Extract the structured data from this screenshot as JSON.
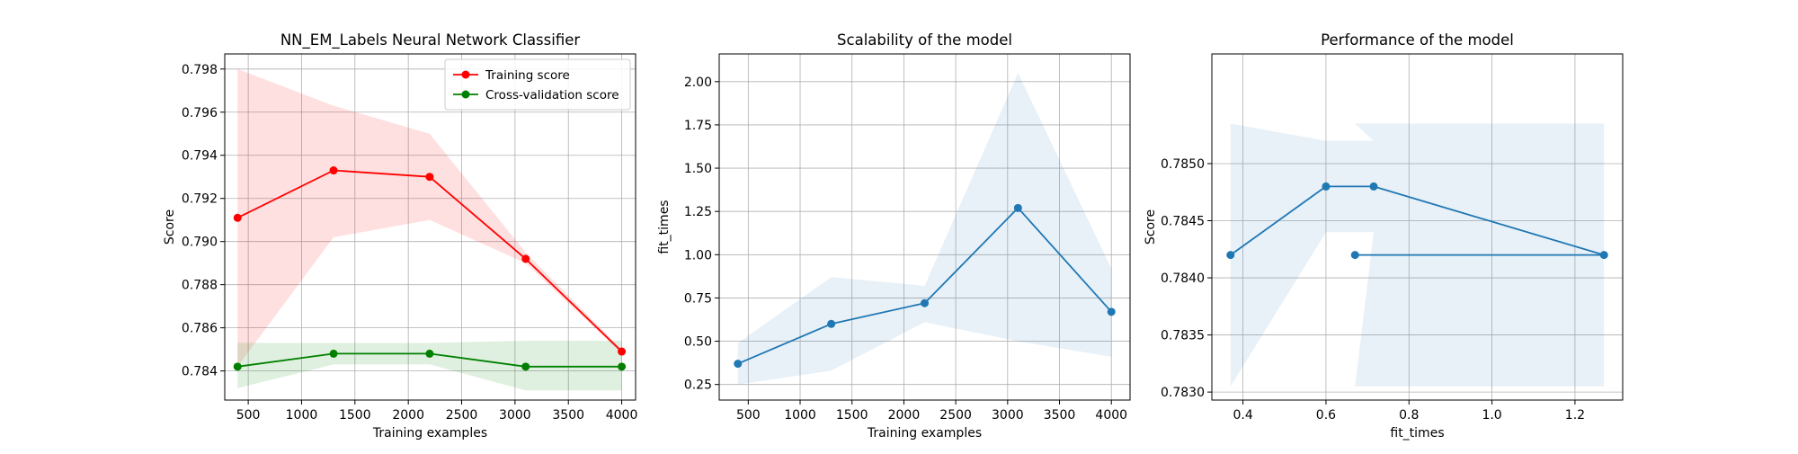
{
  "figure": {
    "background": "#ffffff"
  },
  "chart_data": [
    {
      "type": "line",
      "title": "NN_EM_Labels Neural Network Classifier",
      "xlabel": "Training examples",
      "ylabel": "Score",
      "xlim": [
        280,
        4130
      ],
      "ylim": [
        0.78265,
        0.7987
      ],
      "xticks": [
        {
          "value": 500,
          "label": "500"
        },
        {
          "value": 1000,
          "label": "1000"
        },
        {
          "value": 1500,
          "label": "1500"
        },
        {
          "value": 2000,
          "label": "2000"
        },
        {
          "value": 2500,
          "label": "2500"
        },
        {
          "value": 3000,
          "label": "3000"
        },
        {
          "value": 3500,
          "label": "3500"
        },
        {
          "value": 4000,
          "label": "4000"
        }
      ],
      "yticks": [
        {
          "value": 0.784,
          "label": "0.784"
        },
        {
          "value": 0.786,
          "label": "0.786"
        },
        {
          "value": 0.788,
          "label": "0.788"
        },
        {
          "value": 0.79,
          "label": "0.790"
        },
        {
          "value": 0.792,
          "label": "0.792"
        },
        {
          "value": 0.794,
          "label": "0.794"
        },
        {
          "value": 0.796,
          "label": "0.796"
        },
        {
          "value": 0.798,
          "label": "0.798"
        }
      ],
      "grid": true,
      "legend": {
        "position": "upper-right"
      },
      "bands": [
        {
          "x": [
            400,
            1300,
            2200,
            3100,
            4000
          ],
          "lower": [
            0.7842,
            0.7902,
            0.791,
            0.789,
            0.7848
          ],
          "upper": [
            0.798,
            0.7963,
            0.795,
            0.7895,
            0.785
          ],
          "color": "#ff0000",
          "opacity": 0.12
        },
        {
          "x": [
            400,
            1300,
            2200,
            3100,
            4000
          ],
          "lower": [
            0.7832,
            0.7843,
            0.7843,
            0.7831,
            0.7831
          ],
          "upper": [
            0.7853,
            0.7853,
            0.7853,
            0.7854,
            0.7854
          ],
          "color": "#008000",
          "opacity": 0.12
        }
      ],
      "series": [
        {
          "name": "Training score",
          "color": "#ff0000",
          "x": [
            400,
            1300,
            2200,
            3100,
            4000
          ],
          "y": [
            0.7911,
            0.7933,
            0.793,
            0.7892,
            0.7849
          ]
        },
        {
          "name": "Cross-validation score",
          "color": "#008000",
          "x": [
            400,
            1300,
            2200,
            3100,
            4000
          ],
          "y": [
            0.7842,
            0.7848,
            0.7848,
            0.7842,
            0.7842
          ]
        }
      ]
    },
    {
      "type": "line",
      "title": "Scalability of the model",
      "xlabel": "Training examples",
      "ylabel": "fit_times",
      "xlim": [
        220,
        4180
      ],
      "ylim": [
        0.16,
        2.16
      ],
      "xticks": [
        {
          "value": 500,
          "label": "500"
        },
        {
          "value": 1000,
          "label": "1000"
        },
        {
          "value": 1500,
          "label": "1500"
        },
        {
          "value": 2000,
          "label": "2000"
        },
        {
          "value": 2500,
          "label": "2500"
        },
        {
          "value": 3000,
          "label": "3000"
        },
        {
          "value": 3500,
          "label": "3500"
        },
        {
          "value": 4000,
          "label": "4000"
        }
      ],
      "yticks": [
        {
          "value": 0.25,
          "label": "0.25"
        },
        {
          "value": 0.5,
          "label": "0.50"
        },
        {
          "value": 0.75,
          "label": "0.75"
        },
        {
          "value": 1.0,
          "label": "1.00"
        },
        {
          "value": 1.25,
          "label": "1.25"
        },
        {
          "value": 1.5,
          "label": "1.50"
        },
        {
          "value": 1.75,
          "label": "1.75"
        },
        {
          "value": 2.0,
          "label": "2.00"
        }
      ],
      "grid": true,
      "bands": [
        {
          "x": [
            400,
            1300,
            2200,
            3100,
            4000
          ],
          "lower": [
            0.25,
            0.33,
            0.61,
            0.5,
            0.41
          ],
          "upper": [
            0.49,
            0.87,
            0.82,
            2.05,
            0.92
          ],
          "color": "#1f77b4",
          "opacity": 0.1
        }
      ],
      "series": [
        {
          "color": "#1f77b4",
          "x": [
            400,
            1300,
            2200,
            3100,
            4000
          ],
          "y": [
            0.37,
            0.6,
            0.72,
            1.27,
            0.67
          ]
        }
      ]
    },
    {
      "type": "line",
      "title": "Performance of the model",
      "xlabel": "fit_times",
      "ylabel": "Score",
      "xlim": [
        0.325,
        1.315
      ],
      "ylim": [
        0.78293,
        0.78596
      ],
      "xticks": [
        {
          "value": 0.4,
          "label": "0.4"
        },
        {
          "value": 0.6,
          "label": "0.6"
        },
        {
          "value": 0.8,
          "label": "0.8"
        },
        {
          "value": 1.0,
          "label": "1.0"
        },
        {
          "value": 1.2,
          "label": "1.2"
        }
      ],
      "yticks": [
        {
          "value": 0.783,
          "label": "0.7830"
        },
        {
          "value": 0.7835,
          "label": "0.7835"
        },
        {
          "value": 0.784,
          "label": "0.7840"
        },
        {
          "value": 0.7845,
          "label": "0.7845"
        },
        {
          "value": 0.785,
          "label": "0.7850"
        }
      ],
      "grid": true,
      "bands": [
        {
          "x": [
            0.37,
            0.6,
            0.715,
            0.67,
            1.27
          ],
          "lower": [
            0.78305,
            0.7844,
            0.7844,
            0.78305,
            0.78305
          ],
          "upper": [
            0.78535,
            0.7852,
            0.7852,
            0.78535,
            0.78535
          ],
          "color": "#1f77b4",
          "opacity": 0.1
        }
      ],
      "series": [
        {
          "color": "#1f77b4",
          "x": [
            0.37,
            0.6,
            0.715,
            1.27,
            0.67
          ],
          "y": [
            0.7842,
            0.7848,
            0.7848,
            0.7842,
            0.7842
          ]
        }
      ]
    }
  ]
}
